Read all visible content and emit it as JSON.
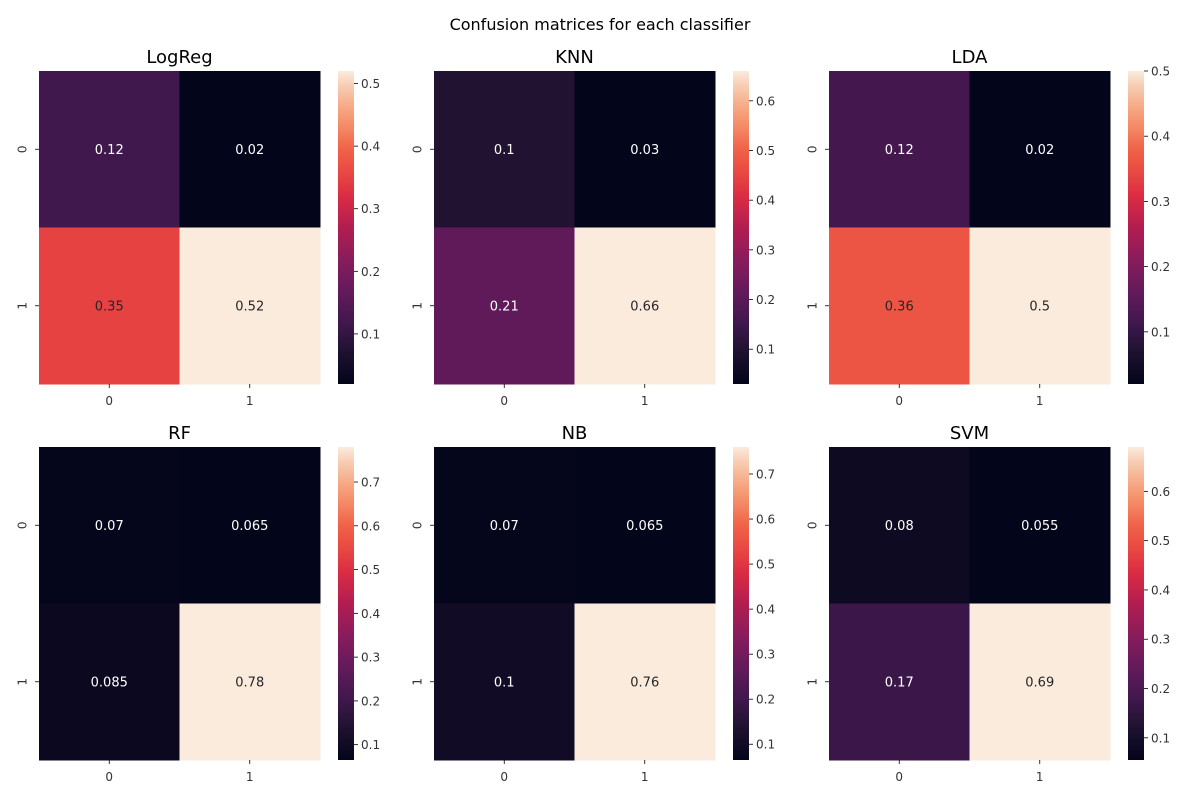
{
  "suptitle": "Confusion matrices for each classifier",
  "chart_data": [
    {
      "type": "heatmap",
      "title": "LogReg",
      "row_labels": [
        "0",
        "1"
      ],
      "col_labels": [
        "0",
        "1"
      ],
      "values": [
        [
          0.12,
          0.02
        ],
        [
          0.35,
          0.52
        ]
      ],
      "annotations": [
        [
          "0.12",
          "0.02"
        ],
        [
          "0.35",
          "0.52"
        ]
      ],
      "colorbar": {
        "min": 0.02,
        "max": 0.52,
        "ticks": [
          "0.1",
          "0.2",
          "0.3",
          "0.4",
          "0.5"
        ],
        "tick_values": [
          0.1,
          0.2,
          0.3,
          0.4,
          0.5
        ]
      }
    },
    {
      "type": "heatmap",
      "title": "KNN",
      "row_labels": [
        "0",
        "1"
      ],
      "col_labels": [
        "0",
        "1"
      ],
      "values": [
        [
          0.1,
          0.03
        ],
        [
          0.21,
          0.66
        ]
      ],
      "annotations": [
        [
          "0.1",
          "0.03"
        ],
        [
          "0.21",
          "0.66"
        ]
      ],
      "colorbar": {
        "min": 0.03,
        "max": 0.66,
        "ticks": [
          "0.1",
          "0.2",
          "0.3",
          "0.4",
          "0.5",
          "0.6"
        ],
        "tick_values": [
          0.1,
          0.2,
          0.3,
          0.4,
          0.5,
          0.6
        ]
      }
    },
    {
      "type": "heatmap",
      "title": "LDA",
      "row_labels": [
        "0",
        "1"
      ],
      "col_labels": [
        "0",
        "1"
      ],
      "values": [
        [
          0.12,
          0.02
        ],
        [
          0.36,
          0.5
        ]
      ],
      "annotations": [
        [
          "0.12",
          "0.02"
        ],
        [
          "0.36",
          "0.5"
        ]
      ],
      "colorbar": {
        "min": 0.02,
        "max": 0.5,
        "ticks": [
          "0.1",
          "0.2",
          "0.3",
          "0.4",
          "0.5"
        ],
        "tick_values": [
          0.1,
          0.2,
          0.3,
          0.4,
          0.5
        ]
      }
    },
    {
      "type": "heatmap",
      "title": "RF",
      "row_labels": [
        "0",
        "1"
      ],
      "col_labels": [
        "0",
        "1"
      ],
      "values": [
        [
          0.07,
          0.065
        ],
        [
          0.085,
          0.78
        ]
      ],
      "annotations": [
        [
          "0.07",
          "0.065"
        ],
        [
          "0.085",
          "0.78"
        ]
      ],
      "colorbar": {
        "min": 0.065,
        "max": 0.78,
        "ticks": [
          "0.1",
          "0.2",
          "0.3",
          "0.4",
          "0.5",
          "0.6",
          "0.7"
        ],
        "tick_values": [
          0.1,
          0.2,
          0.3,
          0.4,
          0.5,
          0.6,
          0.7
        ]
      }
    },
    {
      "type": "heatmap",
      "title": "NB",
      "row_labels": [
        "0",
        "1"
      ],
      "col_labels": [
        "0",
        "1"
      ],
      "values": [
        [
          0.07,
          0.065
        ],
        [
          0.1,
          0.76
        ]
      ],
      "annotations": [
        [
          "0.07",
          "0.065"
        ],
        [
          "0.1",
          "0.76"
        ]
      ],
      "colorbar": {
        "min": 0.065,
        "max": 0.76,
        "ticks": [
          "0.1",
          "0.2",
          "0.3",
          "0.4",
          "0.5",
          "0.6",
          "0.7"
        ],
        "tick_values": [
          0.1,
          0.2,
          0.3,
          0.4,
          0.5,
          0.6,
          0.7
        ]
      }
    },
    {
      "type": "heatmap",
      "title": "SVM",
      "row_labels": [
        "0",
        "1"
      ],
      "col_labels": [
        "0",
        "1"
      ],
      "values": [
        [
          0.08,
          0.055
        ],
        [
          0.17,
          0.69
        ]
      ],
      "annotations": [
        [
          "0.08",
          "0.055"
        ],
        [
          "0.17",
          "0.69"
        ]
      ],
      "colorbar": {
        "min": 0.055,
        "max": 0.69,
        "ticks": [
          "0.1",
          "0.2",
          "0.3",
          "0.4",
          "0.5",
          "0.6"
        ],
        "tick_values": [
          0.1,
          0.2,
          0.3,
          0.4,
          0.5,
          0.6
        ]
      }
    }
  ]
}
